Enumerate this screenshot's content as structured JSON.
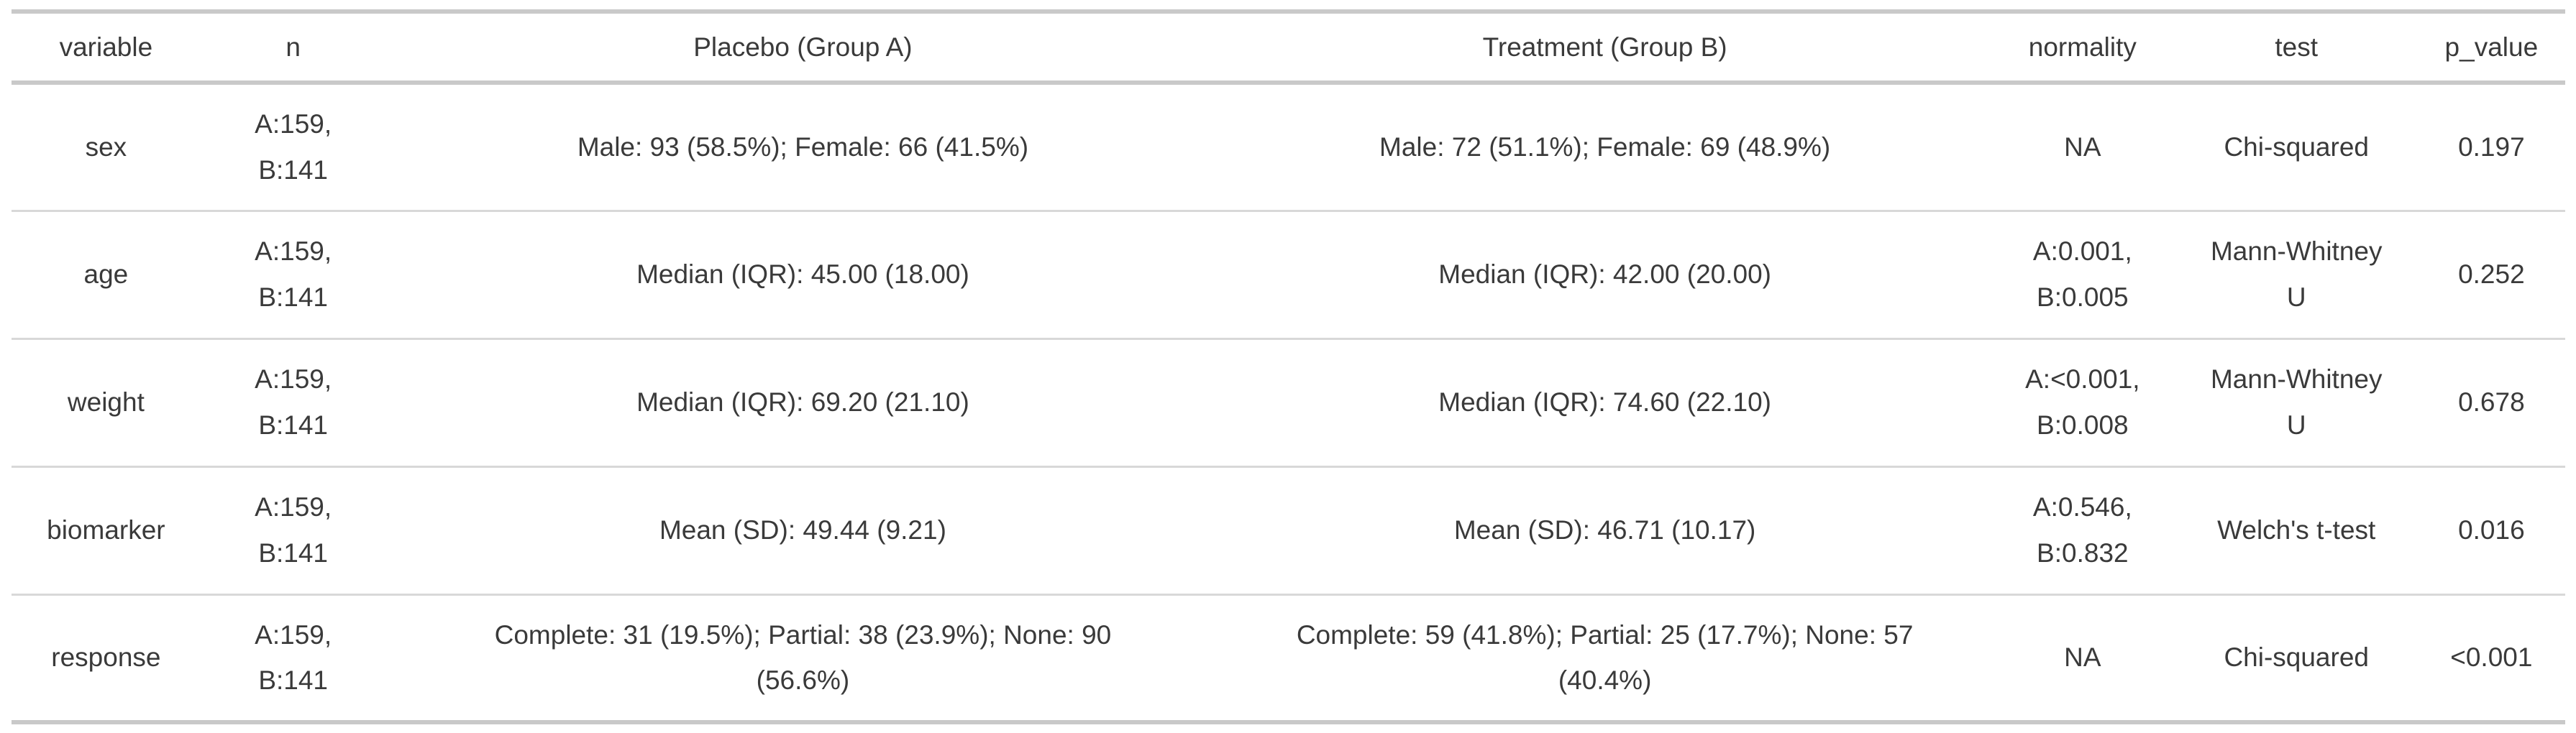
{
  "colors": {
    "background": "#ffffff",
    "text": "#3a3a3a",
    "rule_heavy": "#c9c9c9",
    "rule_light": "#d8d8d8"
  },
  "chart_data": {
    "type": "table",
    "columns": [
      {
        "key": "variable",
        "label": "variable"
      },
      {
        "key": "n",
        "label": "n"
      },
      {
        "key": "placebo",
        "label": "Placebo (Group A)"
      },
      {
        "key": "treatment",
        "label": "Treatment (Group B)"
      },
      {
        "key": "normality",
        "label": "normality"
      },
      {
        "key": "test",
        "label": "test"
      },
      {
        "key": "p_value",
        "label": "p_value"
      }
    ],
    "rows": [
      {
        "variable": "sex",
        "n": "A:159,\nB:141",
        "placebo": "Male: 93 (58.5%); Female: 66 (41.5%)",
        "treatment": "Male: 72 (51.1%); Female: 69 (48.9%)",
        "normality": "NA",
        "test": "Chi-squared",
        "p_value": "0.197"
      },
      {
        "variable": "age",
        "n": "A:159,\nB:141",
        "placebo": "Median (IQR): 45.00 (18.00)",
        "treatment": "Median (IQR): 42.00 (20.00)",
        "normality": "A:0.001,\nB:0.005",
        "test": "Mann-Whitney\nU",
        "p_value": "0.252"
      },
      {
        "variable": "weight",
        "n": "A:159,\nB:141",
        "placebo": "Median (IQR): 69.20 (21.10)",
        "treatment": "Median (IQR): 74.60 (22.10)",
        "normality": "A:<0.001,\nB:0.008",
        "test": "Mann-Whitney\nU",
        "p_value": "0.678"
      },
      {
        "variable": "biomarker",
        "n": "A:159,\nB:141",
        "placebo": "Mean (SD): 49.44 (9.21)",
        "treatment": "Mean (SD): 46.71 (10.17)",
        "normality": "A:0.546,\nB:0.832",
        "test": "Welch's t-test",
        "p_value": "0.016"
      },
      {
        "variable": "response",
        "n": "A:159,\nB:141",
        "placebo": "Complete: 31 (19.5%); Partial: 38 (23.9%); None: 90\n(56.6%)",
        "treatment": "Complete: 59 (41.8%); Partial: 25 (17.7%); None: 57\n(40.4%)",
        "normality": "NA",
        "test": "Chi-squared",
        "p_value": "<0.001"
      }
    ]
  }
}
